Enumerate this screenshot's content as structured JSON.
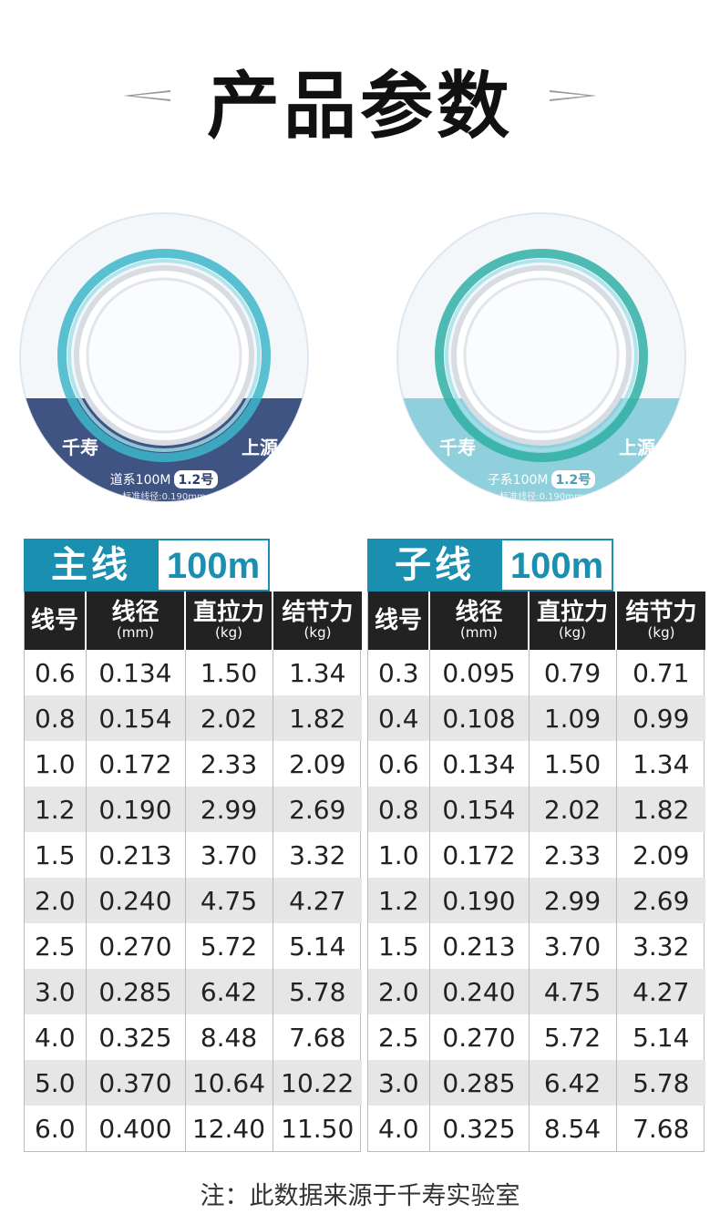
{
  "title": "产品参数",
  "spools": [
    {
      "brand_left": "千寿",
      "brand_right": "上源",
      "series": "道系100M",
      "size": "1.2号",
      "diameter_label": "标准线径:0.190mm",
      "band_color": "#3f5483"
    },
    {
      "brand_left": "千寿",
      "brand_right": "上源",
      "series": "子系100M",
      "size": "1.2号",
      "diameter_label": "标准线径:0.190mm",
      "band_color": "#8fd0dc"
    }
  ],
  "tables": [
    {
      "name": "主线",
      "length": "100m",
      "headers": [
        {
          "label": "线号",
          "unit": ""
        },
        {
          "label": "线径",
          "unit": "(mm)"
        },
        {
          "label": "直拉力",
          "unit": "(kg)"
        },
        {
          "label": "结节力",
          "unit": "(kg)"
        }
      ],
      "rows": [
        [
          "0.6",
          "0.134",
          "1.50",
          "1.34"
        ],
        [
          "0.8",
          "0.154",
          "2.02",
          "1.82"
        ],
        [
          "1.0",
          "0.172",
          "2.33",
          "2.09"
        ],
        [
          "1.2",
          "0.190",
          "2.99",
          "2.69"
        ],
        [
          "1.5",
          "0.213",
          "3.70",
          "3.32"
        ],
        [
          "2.0",
          "0.240",
          "4.75",
          "4.27"
        ],
        [
          "2.5",
          "0.270",
          "5.72",
          "5.14"
        ],
        [
          "3.0",
          "0.285",
          "6.42",
          "5.78"
        ],
        [
          "4.0",
          "0.325",
          "8.48",
          "7.68"
        ],
        [
          "5.0",
          "0.370",
          "10.64",
          "10.22"
        ],
        [
          "6.0",
          "0.400",
          "12.40",
          "11.50"
        ]
      ]
    },
    {
      "name": "子线",
      "length": "100m",
      "headers": [
        {
          "label": "线号",
          "unit": ""
        },
        {
          "label": "线径",
          "unit": "(mm)"
        },
        {
          "label": "直拉力",
          "unit": "(kg)"
        },
        {
          "label": "结节力",
          "unit": "(kg)"
        }
      ],
      "rows": [
        [
          "0.3",
          "0.095",
          "0.79",
          "0.71"
        ],
        [
          "0.4",
          "0.108",
          "1.09",
          "0.99"
        ],
        [
          "0.6",
          "0.134",
          "1.50",
          "1.34"
        ],
        [
          "0.8",
          "0.154",
          "2.02",
          "1.82"
        ],
        [
          "1.0",
          "0.172",
          "2.33",
          "2.09"
        ],
        [
          "1.2",
          "0.190",
          "2.99",
          "2.69"
        ],
        [
          "1.5",
          "0.213",
          "3.70",
          "3.32"
        ],
        [
          "2.0",
          "0.240",
          "4.75",
          "4.27"
        ],
        [
          "2.5",
          "0.270",
          "5.72",
          "5.14"
        ],
        [
          "3.0",
          "0.285",
          "6.42",
          "5.78"
        ],
        [
          "4.0",
          "0.325",
          "8.54",
          "7.68"
        ]
      ]
    }
  ],
  "note": "注：此数据来源于千寿实验室"
}
